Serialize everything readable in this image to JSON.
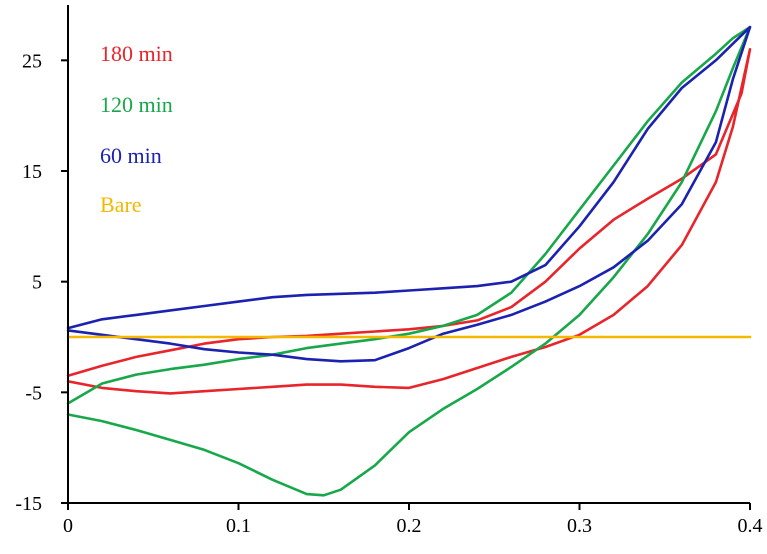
{
  "chart_data": {
    "type": "line",
    "title": "",
    "xlabel": "",
    "ylabel": "",
    "xlim": [
      0,
      0.4
    ],
    "ylim": [
      -15,
      30
    ],
    "x_ticks": [
      0,
      0.1,
      0.2,
      0.3,
      0.4
    ],
    "x_tick_labels": [
      "0",
      "0.1",
      "0.2",
      "0.3",
      "0.4"
    ],
    "y_ticks": [
      -15,
      -5,
      5,
      15,
      25
    ],
    "y_tick_labels": [
      "-15",
      "-5",
      "5",
      "15",
      "25"
    ],
    "grid": false,
    "legend_position": "top-left",
    "series": [
      {
        "name": "180 min",
        "color": "#e8252b",
        "points": [
          [
            0,
            -4
          ],
          [
            0.02,
            -4.6
          ],
          [
            0.04,
            -4.9
          ],
          [
            0.06,
            -5.1
          ],
          [
            0.08,
            -4.9
          ],
          [
            0.1,
            -4.7
          ],
          [
            0.12,
            -4.5
          ],
          [
            0.14,
            -4.3
          ],
          [
            0.16,
            -4.3
          ],
          [
            0.18,
            -4.5
          ],
          [
            0.2,
            -4.6
          ],
          [
            0.22,
            -3.8
          ],
          [
            0.24,
            -2.8
          ],
          [
            0.26,
            -1.8
          ],
          [
            0.28,
            -0.9
          ],
          [
            0.3,
            0.2
          ],
          [
            0.32,
            2
          ],
          [
            0.34,
            4.6
          ],
          [
            0.36,
            8.3
          ],
          [
            0.38,
            14
          ],
          [
            0.39,
            19
          ],
          [
            0.4,
            26
          ],
          [
            0.395,
            22
          ],
          [
            0.38,
            16.5
          ],
          [
            0.36,
            14.3
          ],
          [
            0.34,
            12.5
          ],
          [
            0.32,
            10.6
          ],
          [
            0.3,
            8
          ],
          [
            0.28,
            5
          ],
          [
            0.26,
            2.7
          ],
          [
            0.24,
            1.5
          ],
          [
            0.22,
            1
          ],
          [
            0.2,
            0.7
          ],
          [
            0.18,
            0.5
          ],
          [
            0.16,
            0.3
          ],
          [
            0.14,
            0.1
          ],
          [
            0.12,
            0
          ],
          [
            0.1,
            -0.2
          ],
          [
            0.08,
            -0.6
          ],
          [
            0.06,
            -1.2
          ],
          [
            0.04,
            -1.8
          ],
          [
            0.02,
            -2.6
          ],
          [
            0,
            -3.5
          ]
        ]
      },
      {
        "name": "120 min",
        "color": "#18a84a",
        "points": [
          [
            0,
            -7
          ],
          [
            0.02,
            -7.6
          ],
          [
            0.04,
            -8.4
          ],
          [
            0.06,
            -9.3
          ],
          [
            0.08,
            -10.2
          ],
          [
            0.1,
            -11.4
          ],
          [
            0.12,
            -12.9
          ],
          [
            0.14,
            -14.2
          ],
          [
            0.15,
            -14.3
          ],
          [
            0.16,
            -13.8
          ],
          [
            0.18,
            -11.6
          ],
          [
            0.2,
            -8.6
          ],
          [
            0.22,
            -6.5
          ],
          [
            0.24,
            -4.7
          ],
          [
            0.26,
            -2.7
          ],
          [
            0.28,
            -0.6
          ],
          [
            0.3,
            2
          ],
          [
            0.32,
            5.4
          ],
          [
            0.34,
            9.3
          ],
          [
            0.36,
            14
          ],
          [
            0.38,
            20.4
          ],
          [
            0.39,
            24.3
          ],
          [
            0.4,
            28
          ],
          [
            0.39,
            27
          ],
          [
            0.38,
            25.6
          ],
          [
            0.36,
            23
          ],
          [
            0.34,
            19.5
          ],
          [
            0.32,
            15.5
          ],
          [
            0.3,
            11.5
          ],
          [
            0.28,
            7.5
          ],
          [
            0.26,
            4
          ],
          [
            0.24,
            2
          ],
          [
            0.22,
            1
          ],
          [
            0.2,
            0.3
          ],
          [
            0.18,
            -0.2
          ],
          [
            0.16,
            -0.6
          ],
          [
            0.14,
            -1
          ],
          [
            0.12,
            -1.6
          ],
          [
            0.1,
            -2
          ],
          [
            0.08,
            -2.5
          ],
          [
            0.06,
            -2.9
          ],
          [
            0.04,
            -3.4
          ],
          [
            0.02,
            -4.2
          ],
          [
            0,
            -6
          ]
        ]
      },
      {
        "name": "60 min",
        "color": "#1c22b0",
        "points": [
          [
            0,
            0.6
          ],
          [
            0.02,
            0.2
          ],
          [
            0.04,
            -0.2
          ],
          [
            0.06,
            -0.6
          ],
          [
            0.08,
            -1.1
          ],
          [
            0.1,
            -1.4
          ],
          [
            0.12,
            -1.6
          ],
          [
            0.14,
            -2
          ],
          [
            0.16,
            -2.2
          ],
          [
            0.18,
            -2.1
          ],
          [
            0.2,
            -1
          ],
          [
            0.22,
            0.3
          ],
          [
            0.24,
            1.1
          ],
          [
            0.26,
            2
          ],
          [
            0.28,
            3.2
          ],
          [
            0.3,
            4.6
          ],
          [
            0.32,
            6.3
          ],
          [
            0.34,
            8.7
          ],
          [
            0.36,
            12
          ],
          [
            0.38,
            17.6
          ],
          [
            0.39,
            23.3
          ],
          [
            0.4,
            28
          ],
          [
            0.39,
            26.5
          ],
          [
            0.38,
            25
          ],
          [
            0.36,
            22.5
          ],
          [
            0.34,
            18.8
          ],
          [
            0.32,
            14
          ],
          [
            0.3,
            10
          ],
          [
            0.28,
            6.5
          ],
          [
            0.26,
            5
          ],
          [
            0.24,
            4.6
          ],
          [
            0.22,
            4.4
          ],
          [
            0.2,
            4.2
          ],
          [
            0.18,
            4
          ],
          [
            0.16,
            3.9
          ],
          [
            0.14,
            3.8
          ],
          [
            0.12,
            3.6
          ],
          [
            0.1,
            3.2
          ],
          [
            0.08,
            2.8
          ],
          [
            0.06,
            2.4
          ],
          [
            0.04,
            2
          ],
          [
            0.02,
            1.6
          ],
          [
            0,
            0.8
          ]
        ]
      },
      {
        "name": "Bare",
        "color": "#f5b800",
        "points": [
          [
            0,
            0
          ],
          [
            0.4,
            0
          ]
        ]
      }
    ]
  }
}
